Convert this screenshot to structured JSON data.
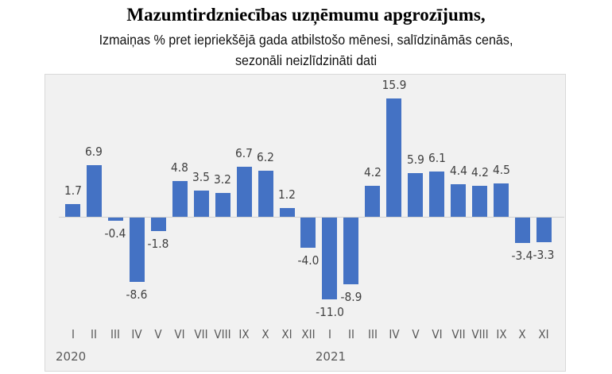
{
  "title": "Mazumtirdzniecības uzņēmumu apgrozījums,",
  "subtitle_line1": "Izmaiņas % pret iepriekšējā gada atbilstošo mēnesi, salīdzināmās cenās,",
  "subtitle_line2": "sezonāli neizlīdzināti dati",
  "colors": {
    "bar": "#4472c4",
    "plot_bg": "#f1f1f1",
    "label": "#404040"
  },
  "years": [
    {
      "label": "2020",
      "start_index": 0
    },
    {
      "label": "2021",
      "start_index": 12
    }
  ],
  "chart_data": {
    "type": "bar",
    "title": "Mazumtirdzniecības uzņēmumu apgrozījums,",
    "subtitle": "Izmaiņas % pret iepriekšējā gada atbilstošo mēnesi, salīdzināmās cenās, sezonāli neizlīdzināti dati",
    "xlabel": "",
    "ylabel": "",
    "grid": false,
    "legend": null,
    "categories": [
      "I",
      "II",
      "III",
      "IV",
      "V",
      "VI",
      "VII",
      "VIII",
      "IX",
      "X",
      "XI",
      "XII",
      "I",
      "II",
      "III",
      "IV",
      "V",
      "VI",
      "VII",
      "VIII",
      "IX",
      "X",
      "XI"
    ],
    "category_groups": [
      {
        "label": "2020",
        "categories": [
          "I",
          "II",
          "III",
          "IV",
          "V",
          "VI",
          "VII",
          "VIII",
          "IX",
          "X",
          "XI",
          "XII"
        ]
      },
      {
        "label": "2021",
        "categories": [
          "I",
          "II",
          "III",
          "IV",
          "V",
          "VI",
          "VII",
          "VIII",
          "IX",
          "X",
          "XI"
        ]
      }
    ],
    "values": [
      1.7,
      6.9,
      -0.4,
      -8.6,
      -1.8,
      4.8,
      3.5,
      3.2,
      6.7,
      6.2,
      1.2,
      -4.0,
      -11.0,
      -8.9,
      4.2,
      15.9,
      5.9,
      6.1,
      4.4,
      4.2,
      4.5,
      -3.4,
      -3.3
    ],
    "value_labels": [
      "1.7",
      "6.9",
      "-0.4",
      "-8.6",
      "-1.8",
      "4.8",
      "3.5",
      "3.2",
      "6.7",
      "6.2",
      "1.2",
      "-4.0",
      "-11.0",
      "-8.9",
      "4.2",
      "15.9",
      "5.9",
      "6.1",
      "4.4",
      "4.2",
      "4.5",
      "-3.4",
      "-3.3"
    ],
    "ylim": [
      -13,
      17
    ]
  }
}
